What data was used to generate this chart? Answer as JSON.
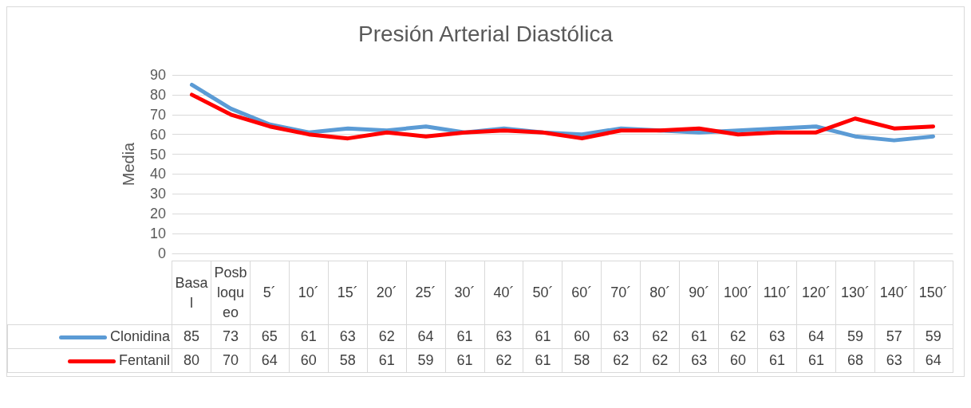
{
  "chart_data": {
    "type": "line",
    "title": "Presión Arterial Diastólica",
    "ylabel": "Media",
    "categories": [
      "Basal",
      "Posbloqueo",
      "5´",
      "10´",
      "15´",
      "20´",
      "25´",
      "30´",
      "40´",
      "50´",
      "60´",
      "70´",
      "80´",
      "90´",
      "100´",
      "110´",
      "120´",
      "130´",
      "140´",
      "150´"
    ],
    "series": [
      {
        "name": "Clonidina",
        "color": "#5b9bd5",
        "values": [
          85,
          73,
          65,
          61,
          63,
          62,
          64,
          61,
          63,
          61,
          60,
          63,
          62,
          61,
          62,
          63,
          64,
          59,
          57,
          59
        ]
      },
      {
        "name": "Fentanil",
        "color": "#ff0000",
        "values": [
          80,
          70,
          64,
          60,
          58,
          61,
          59,
          61,
          62,
          61,
          58,
          62,
          62,
          63,
          60,
          61,
          61,
          68,
          63,
          64
        ]
      }
    ],
    "ylim": [
      0,
      90
    ],
    "yticks": [
      0,
      10,
      20,
      30,
      40,
      50,
      60,
      70,
      80,
      90
    ],
    "grid": "y",
    "legend": "bottom",
    "data_labels": true,
    "marker": "none",
    "line_style": "solid"
  }
}
